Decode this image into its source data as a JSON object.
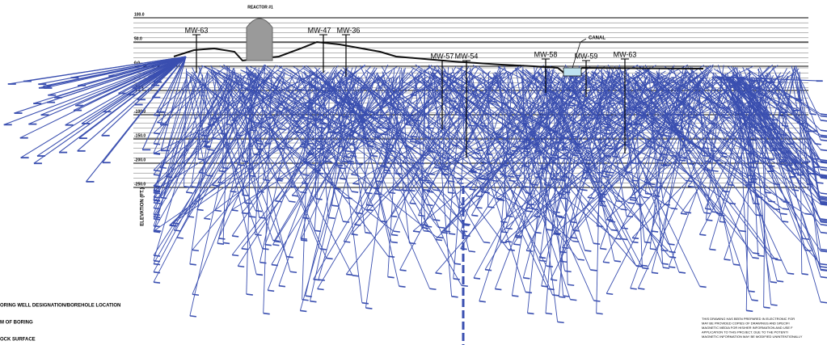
{
  "drawing": {
    "reactor_label": "REACTOR #1",
    "canal_label": "CANAL",
    "wells": [
      "MW-63",
      "MW-47",
      "MW-36",
      "MW-57",
      "MW-54",
      "MW-58",
      "MW-59",
      "MW-63"
    ],
    "elevations": [
      "100.0",
      "50.0",
      "0.0",
      "-50.0",
      "-100.0",
      "-150.0",
      "-200.0",
      "-250.0"
    ],
    "axis_label": "ELEVATION (FT.)",
    "legend": [
      "ORING WELL DESIGNATION/BOREHOLE LOCATION",
      "M OF BORING",
      "OCK SURFACE"
    ],
    "note": [
      "THIS DRAWING HAS BEEN PREPARED IN ELECTRONIC FOR",
      "MAY BE PROVIDED COPIES OF DRAWINGS AND SPECIFI",
      "MAGNETIC MEDIA FOR HIS/HER INFORMATION AND USE F",
      "APPLICATION TO THIS PROJECT. DUE TO THE POTENTI",
      "MAGNETIC INFORMATION MAY BE MODIFIED UNINTENTIONALLY"
    ]
  }
}
